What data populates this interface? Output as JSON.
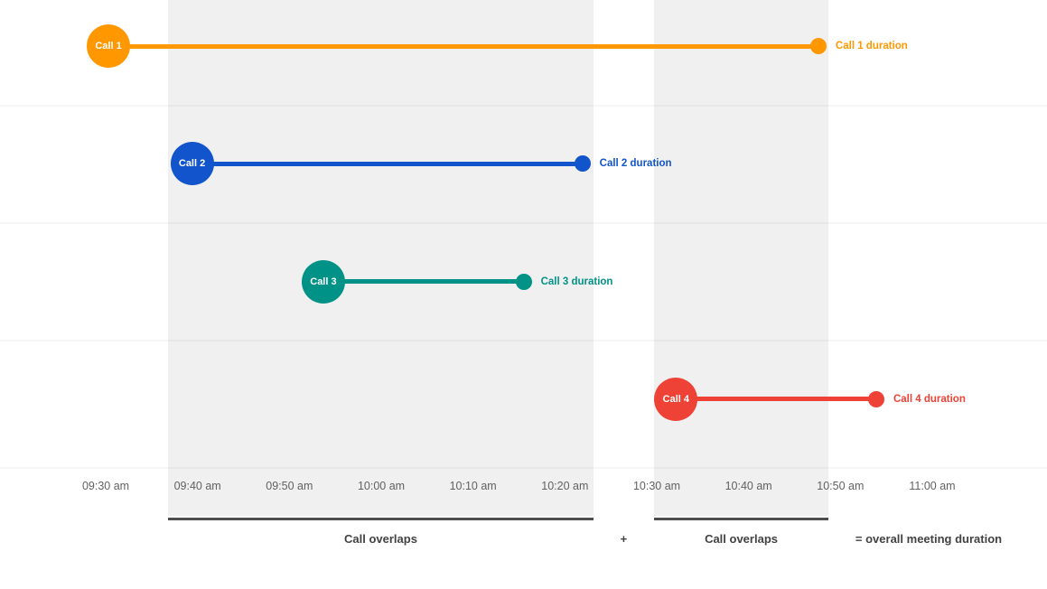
{
  "chart_data": {
    "type": "timeline",
    "title": "",
    "x_axis": {
      "tick_labels": [
        "09:30 am",
        "09:40 am",
        "09:50 am",
        "10:00 am",
        "10:10 am",
        "10:20 am",
        "10:30 am",
        "10:40 am",
        "10:50 am",
        "11:00 am"
      ],
      "start_label": "09:30 am",
      "end_label": "11:00 am",
      "minutes_span": 90,
      "grid": true
    },
    "calls": [
      {
        "label": "Call 1",
        "duration_label": "Call 1 duration",
        "color": "#FF9800",
        "start_time": "09:30 am",
        "end_time": "10:48 am",
        "start_min": 0.3,
        "end_min": 77.6
      },
      {
        "label": "Call 2",
        "duration_label": "Call 2 duration",
        "color": "#1254CB",
        "start_time": "09:39 am",
        "end_time": "10:22 am",
        "start_min": 9.4,
        "end_min": 51.9
      },
      {
        "label": "Call 3",
        "duration_label": "Call 3 duration",
        "color": "#019287",
        "start_time": "09:54 am",
        "end_time": "10:15 am",
        "start_min": 23.7,
        "end_min": 45.5
      },
      {
        "label": "Call 4",
        "duration_label": "Call 4 duration",
        "color": "#EF4237",
        "start_time": "10:32 am",
        "end_time": "10:54 am",
        "start_min": 62.1,
        "end_min": 83.9
      }
    ],
    "overlap_bands": [
      {
        "label": "Call overlaps",
        "start_time": "09:37 am",
        "end_time": "10:23 am",
        "start_min": 6.8,
        "end_min": 53.1
      },
      {
        "label": "Call overlaps",
        "start_time": "10:30 am",
        "end_time": "10:49 am",
        "start_min": 59.7,
        "end_min": 78.7
      }
    ],
    "annotations": {
      "plus": "+",
      "equals": "= overall meeting duration"
    },
    "colors": {
      "band": "#f0f0f0",
      "underline_bar": "#4d4d4d",
      "axis_label": "#616161",
      "bottom_label": "#424242"
    }
  }
}
